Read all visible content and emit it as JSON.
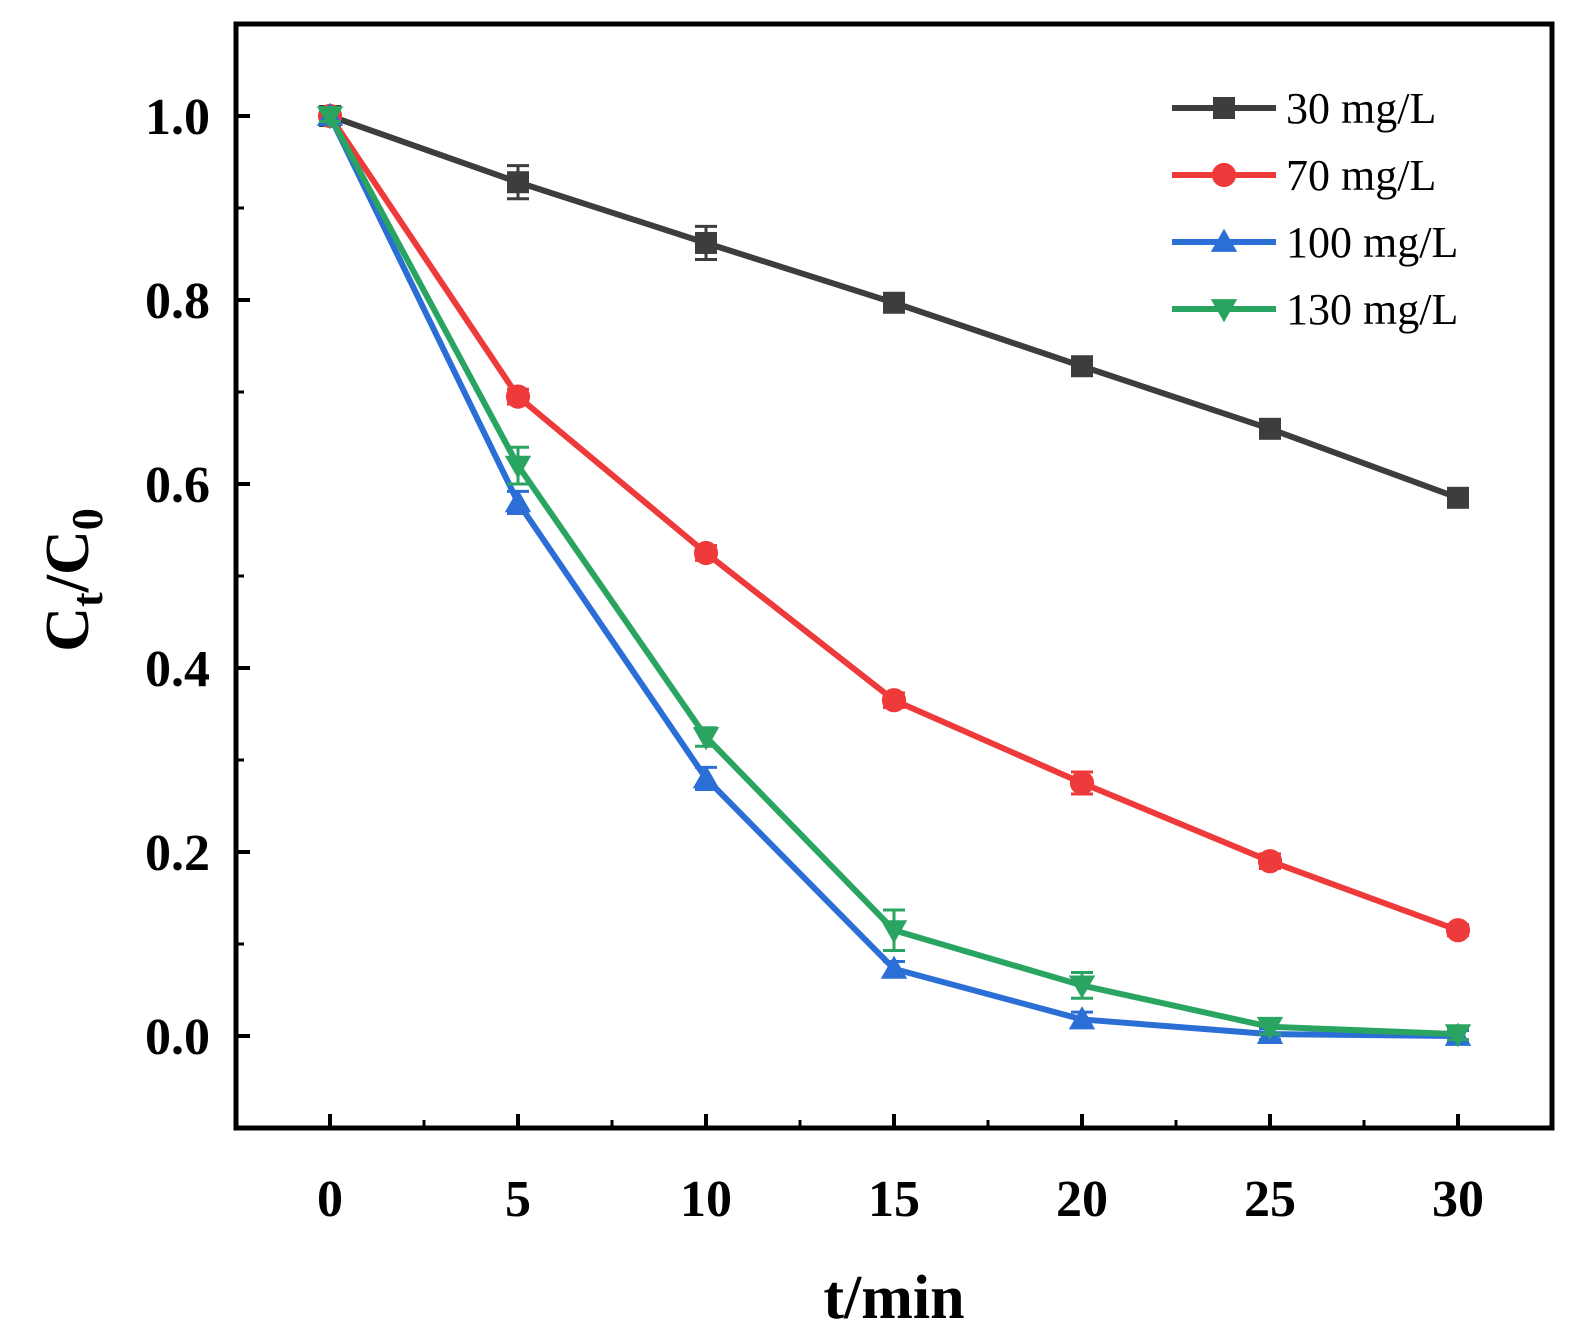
{
  "chart_data": {
    "type": "line",
    "title": "",
    "xlabel": "t/min",
    "ylabel_main": "C",
    "ylabel_sub1": "t",
    "ylabel_mid": "/C",
    "ylabel_sub2": "0",
    "xlim": [
      -2.5,
      32.5
    ],
    "ylim": [
      -0.1,
      1.1
    ],
    "x_ticks": [
      0,
      5,
      10,
      15,
      20,
      25,
      30
    ],
    "x_tick_labels": [
      "0",
      "5",
      "10",
      "15",
      "20",
      "25",
      "30"
    ],
    "y_ticks": [
      0.0,
      0.2,
      0.4,
      0.6,
      0.8,
      1.0
    ],
    "y_tick_labels": [
      "0.0",
      "0.2",
      "0.4",
      "0.6",
      "0.8",
      "1.0"
    ],
    "legend_position": "top-right",
    "x": [
      0,
      5,
      10,
      15,
      20,
      25,
      30
    ],
    "series": [
      {
        "name": "30 mg/L",
        "color": "#3d3d3d",
        "marker": "square",
        "values": [
          1.0,
          0.928,
          0.862,
          0.797,
          0.728,
          0.66,
          0.585
        ],
        "errors": [
          0.006,
          0.018,
          0.018,
          0.008,
          0.008,
          0.008,
          0.008
        ]
      },
      {
        "name": "70 mg/L",
        "color": "#ee3a3a",
        "marker": "circle",
        "values": [
          1.0,
          0.695,
          0.525,
          0.365,
          0.275,
          0.19,
          0.115
        ],
        "errors": [
          0.006,
          0.008,
          0.008,
          0.008,
          0.012,
          0.008,
          0.006
        ]
      },
      {
        "name": "100 mg/L",
        "color": "#2b6fd6",
        "marker": "triangle-up",
        "values": [
          1.0,
          0.58,
          0.28,
          0.073,
          0.018,
          0.002,
          0.0
        ],
        "errors": [
          0.006,
          0.012,
          0.012,
          0.008,
          0.008,
          0.006,
          0.006
        ]
      },
      {
        "name": "130 mg/L",
        "color": "#2aa561",
        "marker": "triangle-down",
        "values": [
          1.0,
          0.62,
          0.325,
          0.115,
          0.055,
          0.01,
          0.002
        ],
        "errors": [
          0.006,
          0.02,
          0.01,
          0.022,
          0.014,
          0.008,
          0.006
        ]
      }
    ]
  }
}
